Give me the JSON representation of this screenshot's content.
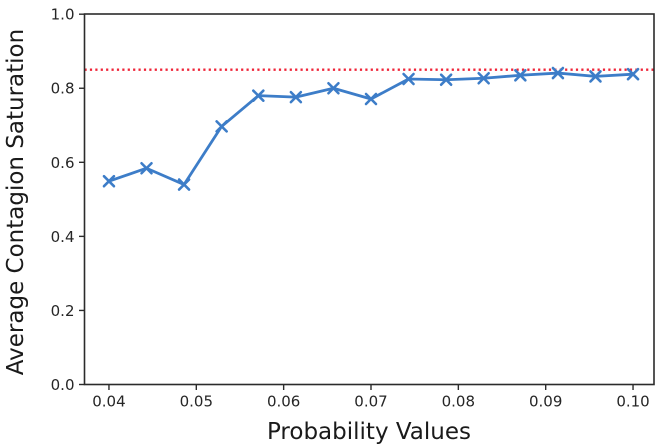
{
  "chart_data": {
    "type": "line",
    "title": "",
    "xlabel": "Probability Values",
    "ylabel": "Average Contagion Saturation",
    "x": [
      0.04,
      0.0443,
      0.0486,
      0.0529,
      0.0571,
      0.0614,
      0.0657,
      0.07,
      0.0743,
      0.0786,
      0.0829,
      0.0871,
      0.0914,
      0.0957,
      0.1
    ],
    "series": [
      {
        "name": "average-contagion-saturation",
        "marker": "x",
        "values": [
          0.549,
          0.584,
          0.54,
          0.697,
          0.78,
          0.776,
          0.8,
          0.771,
          0.825,
          0.823,
          0.827,
          0.835,
          0.841,
          0.832,
          0.838
        ]
      }
    ],
    "reference_line": {
      "y": 0.85,
      "style": "dotted"
    },
    "xlim": [
      0.0372,
      0.1024
    ],
    "ylim": [
      0.0,
      1.0005
    ],
    "xticks": {
      "values": [
        0.04,
        0.05,
        0.06,
        0.07,
        0.08,
        0.09,
        0.1
      ],
      "labels": [
        "0.04",
        "0.05",
        "0.06",
        "0.07",
        "0.08",
        "0.09",
        "0.10"
      ]
    },
    "yticks": {
      "values": [
        0.0,
        0.2,
        0.4,
        0.6,
        0.8,
        1.0
      ],
      "labels": [
        "0.0",
        "0.2",
        "0.4",
        "0.6",
        "0.8",
        "1.0"
      ]
    },
    "grid": false,
    "legend": null,
    "colors": {
      "line": "#3d7dc8",
      "reference": "#ef2438",
      "spine": "#2b2b2b",
      "tick_text": "#262626"
    }
  }
}
